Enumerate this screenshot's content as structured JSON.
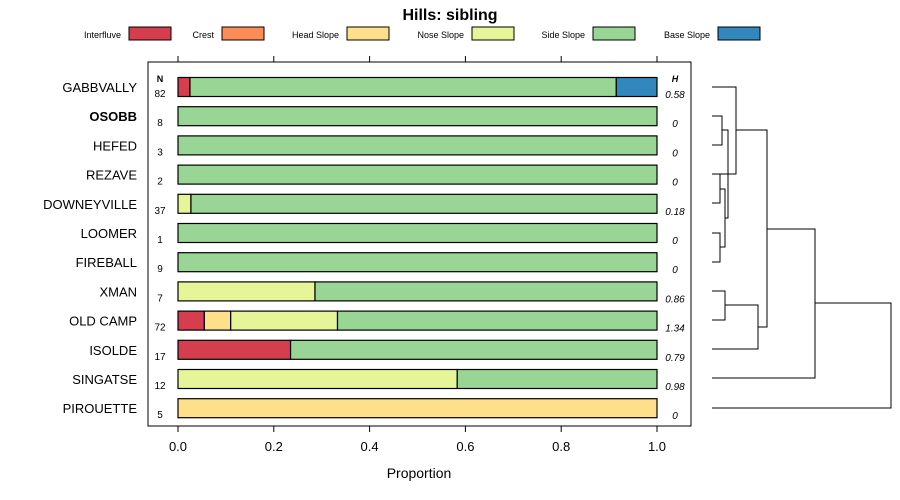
{
  "chart_data": {
    "type": "bar",
    "orientation": "horizontal",
    "stacked": true,
    "title": "Hills: sibling",
    "xlabel": "Proportion",
    "ylabel": "",
    "xlim": [
      0,
      1
    ],
    "x_ticks": [
      "0.0",
      "0.2",
      "0.4",
      "0.6",
      "0.8",
      "1.0"
    ],
    "x_tick_values": [
      0,
      0.2,
      0.4,
      0.6,
      0.8,
      1.0
    ],
    "grid": false,
    "legend_position": "top",
    "n_header": "N",
    "h_header": "H",
    "highlight_category": "OSOBB",
    "categories": [
      "GABBVALLY",
      "OSOBB",
      "HEFED",
      "REZAVE",
      "DOWNEYVILLE",
      "LOOMER",
      "FIREBALL",
      "XMAN",
      "OLD CAMP",
      "ISOLDE",
      "SINGATSE",
      "PIROUETTE"
    ],
    "n_values": [
      "82",
      "8",
      "3",
      "2",
      "37",
      "1",
      "9",
      "7",
      "72",
      "17",
      "12",
      "5"
    ],
    "h_values": [
      "0.58",
      "0",
      "0",
      "0",
      "0.18",
      "0",
      "0",
      "0.86",
      "1.34",
      "0.79",
      "0.98",
      "0"
    ],
    "series": [
      {
        "name": "Interfluve",
        "color": "#d53e4f",
        "values": [
          0.025,
          0,
          0,
          0,
          0,
          0,
          0,
          0,
          0.055,
          0.235,
          0,
          0
        ]
      },
      {
        "name": "Crest",
        "color": "#fc8d59",
        "values": [
          0,
          0,
          0,
          0,
          0,
          0,
          0,
          0,
          0,
          0,
          0,
          0
        ]
      },
      {
        "name": "Head Slope",
        "color": "#fee08b",
        "values": [
          0,
          0,
          0,
          0,
          0,
          0,
          0,
          0,
          0.055,
          0,
          0,
          1.0
        ]
      },
      {
        "name": "Nose Slope",
        "color": "#e6f598",
        "values": [
          0,
          0,
          0,
          0,
          0.027,
          0,
          0,
          0.286,
          0.223,
          0,
          0.583,
          0
        ]
      },
      {
        "name": "Side Slope",
        "color": "#99d594",
        "values": [
          0.89,
          1.0,
          1.0,
          1.0,
          0.973,
          1.0,
          1.0,
          0.714,
          0.667,
          0.765,
          0.417,
          0
        ]
      },
      {
        "name": "Base Slope",
        "color": "#3288bd",
        "values": [
          0.085,
          0,
          0,
          0,
          0,
          0,
          0,
          0,
          0,
          0,
          0,
          0
        ]
      }
    ],
    "dendrogram_merges": [
      {
        "left": "OSOBB",
        "right": "HEFED"
      },
      {
        "left": "REZAVE",
        "right": "DOWNEYVILLE"
      },
      {
        "left": "LOOMER",
        "right": "FIREBALL"
      },
      {
        "left": "XMAN",
        "right": "OLD CAMP"
      }
    ]
  }
}
